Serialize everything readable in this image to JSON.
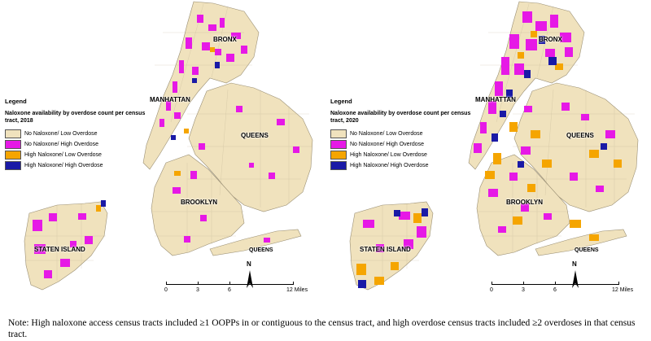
{
  "maps": [
    {
      "legend_title": "Legend",
      "legend_subtitle": "Naloxone availability by overdose count per census tract, 2018",
      "legend_items": [
        {
          "label": "No Naloxone/ Low Overdose",
          "color": "#f0e2bd"
        },
        {
          "label": "No Naloxone/ High Overdose",
          "color": "#e619e6"
        },
        {
          "label": "High Naloxone/ Low Overdose",
          "color": "#f5a500"
        },
        {
          "label": "High Naloxone/ High Overdose",
          "color": "#1a1aa6"
        }
      ],
      "boroughs": {
        "bronx": "BRONX",
        "manhattan": "MANHATTAN",
        "queens": "QUEENS",
        "brooklyn": "BROOKLYN",
        "staten_island": "STATEN ISLAND",
        "queens_south": "QUEENS"
      },
      "scale": {
        "ticks": [
          "0",
          "3",
          "6",
          "12 Miles"
        ]
      },
      "north": "N"
    },
    {
      "legend_title": "Legend",
      "legend_subtitle": "Naloxone availability by overdose count per census tract, 2020",
      "legend_items": [
        {
          "label": "No Naloxone/ Low Overdose",
          "color": "#f0e2bd"
        },
        {
          "label": "No Naloxone/ High Overdose",
          "color": "#e619e6"
        },
        {
          "label": "High Naloxone/ Low Overdose",
          "color": "#f5a500"
        },
        {
          "label": "High Naloxone/ High Overdose",
          "color": "#1a1aa6"
        }
      ],
      "boroughs": {
        "bronx": "BRONX",
        "manhattan": "MANHATTAN",
        "queens": "QUEENS",
        "brooklyn": "BROOKLYN",
        "staten_island": "STATEN ISLAND",
        "queens_south": "QUEENS"
      },
      "scale": {
        "ticks": [
          "0",
          "3",
          "6",
          "12 Miles"
        ]
      },
      "north": "N"
    }
  ],
  "note": "Note: High naloxone access census tracts included ≥1 OOPPs in or contiguous to the census tract, and high overdose census tracts included ≥2 overdoses in that census tract."
}
